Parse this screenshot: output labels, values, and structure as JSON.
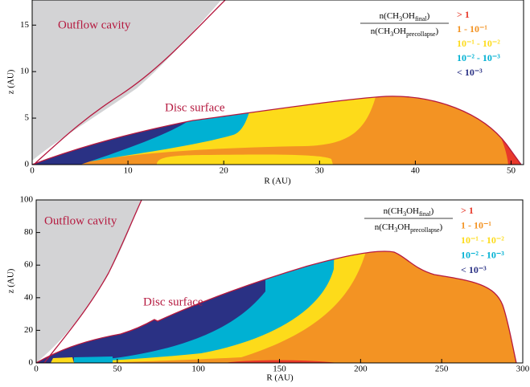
{
  "chart_data": [
    {
      "type": "region-map",
      "xlabel": "R (AU)",
      "ylabel": "z (AU)",
      "xlim": [
        0,
        51.3
      ],
      "ylim": [
        0,
        17.7
      ],
      "xticks": [
        0,
        10,
        20,
        30,
        40,
        50
      ],
      "yticks": [
        0,
        5,
        10,
        15
      ],
      "annotations": [
        "Outflow cavity",
        "Disc surface"
      ],
      "legend_title": {
        "numerator": [
          "n(CH",
          "3",
          "OH",
          "final",
          ")"
        ],
        "denominator": [
          "n(CH",
          "3",
          "OH",
          "precollapse",
          ")"
        ]
      },
      "series": [
        {
          "name": "> 1",
          "color": "#e8392a"
        },
        {
          "name": "1 - 10⁻¹",
          "color": "#f39323"
        },
        {
          "name": "10⁻¹ - 10⁻²",
          "color": "#fddb1a"
        },
        {
          "name": "10⁻² - 10⁻³",
          "color": "#00b1d3"
        },
        {
          "name": "< 10⁻³",
          "color": "#2a3184"
        }
      ]
    },
    {
      "type": "region-map",
      "xlabel": "R (AU)",
      "ylabel": "z (AU)",
      "xlim": [
        0,
        300
      ],
      "ylim": [
        0,
        100
      ],
      "xticks": [
        0,
        50,
        100,
        150,
        200,
        250,
        300
      ],
      "yticks": [
        0,
        20,
        40,
        60,
        80,
        100
      ],
      "annotations": [
        "Outflow cavity",
        "Disc surface"
      ],
      "legend_title": {
        "numerator": [
          "n(CH",
          "3",
          "OH",
          "final",
          ")"
        ],
        "denominator": [
          "n(CH",
          "3",
          "OH",
          "precollapse",
          ")"
        ]
      },
      "series": [
        {
          "name": "> 1",
          "color": "#e8392a"
        },
        {
          "name": "1 - 10⁻¹",
          "color": "#f39323"
        },
        {
          "name": "10⁻¹ - 10⁻²",
          "color": "#fddb1a"
        },
        {
          "name": "10⁻² - 10⁻³",
          "color": "#00b1d3"
        },
        {
          "name": "< 10⁻³",
          "color": "#2a3184"
        }
      ]
    }
  ]
}
